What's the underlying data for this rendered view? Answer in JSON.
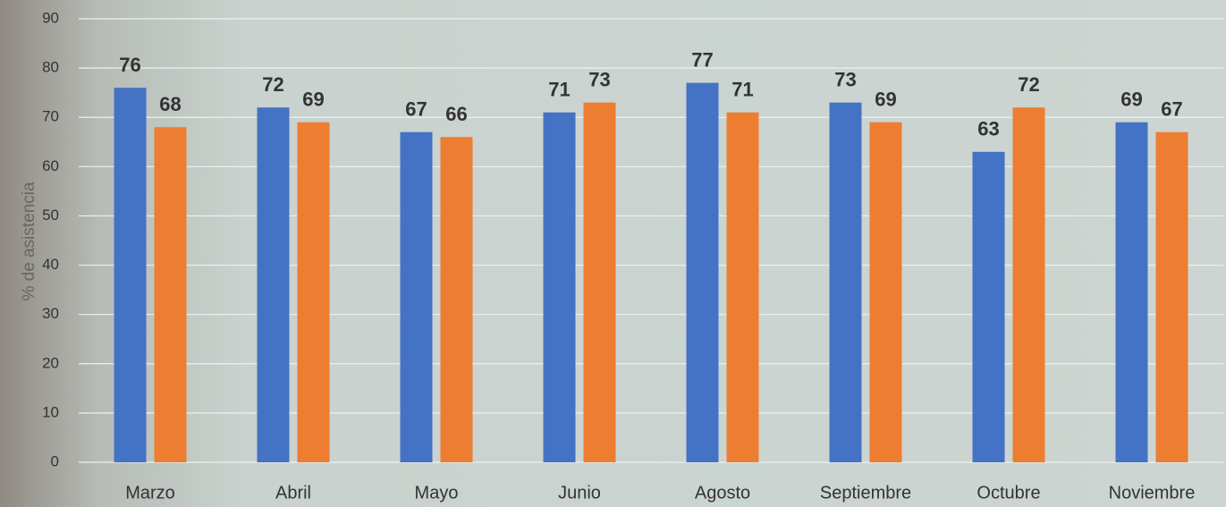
{
  "chart_data": {
    "type": "bar",
    "y_label": "% de asistencia",
    "categories": [
      "Marzo",
      "Abril",
      "Mayo",
      "Junio",
      "Agosto",
      "Septiembre",
      "Octubre",
      "Noviembre"
    ],
    "series": [
      {
        "color": "#4472c4",
        "values": [
          76,
          72,
          67,
          71,
          77,
          73,
          63,
          69
        ]
      },
      {
        "color": "#ed7d31",
        "values": [
          68,
          69,
          66,
          73,
          71,
          69,
          72,
          67
        ]
      }
    ],
    "ylim": [
      0,
      90
    ],
    "yticks": [
      0,
      10,
      20,
      30,
      40,
      50,
      60,
      70,
      80,
      90
    ],
    "grid": true,
    "data_labels": true
  }
}
